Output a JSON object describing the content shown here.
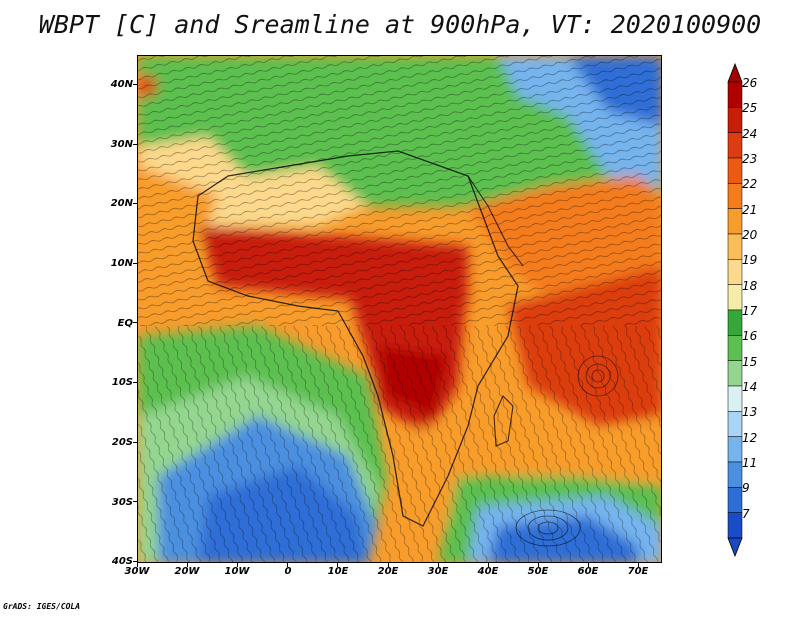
{
  "title": "WBPT [C] and Sreamline at 900hPa, VT: 2020100900",
  "footer": "GrADS: IGES/COLA",
  "axes": {
    "y_labels": [
      "40N",
      "30N",
      "20N",
      "10N",
      "EQ",
      "10S",
      "20S",
      "30S",
      "40S"
    ],
    "x_labels": [
      "30W",
      "20W",
      "10W",
      "0",
      "10E",
      "20E",
      "30E",
      "40E",
      "50E",
      "60E",
      "70E"
    ]
  },
  "colorbar": {
    "labels": [
      "26",
      "25",
      "24",
      "23",
      "22",
      "21",
      "20",
      "19",
      "18",
      "17",
      "16",
      "15",
      "14",
      "13",
      "12",
      "11",
      "9",
      "7"
    ],
    "colors": [
      "#b00000",
      "#c81e08",
      "#dc3c10",
      "#ec5a14",
      "#f47c1a",
      "#f89c2c",
      "#fbbd58",
      "#fcd98c",
      "#f4eca8",
      "#34a838",
      "#5cc050",
      "#94d690",
      "#daf1f4",
      "#a9d4f6",
      "#76b4ee",
      "#4b90e0",
      "#2d6ed6",
      "#1a4cc8"
    ],
    "top_arrow_color": "#a00000",
    "bottom_arrow_color": "#1a48c4"
  },
  "colors": {
    "ocean_cold": "#2d6ed6",
    "green": "#34a838",
    "yellow": "#fcd98c",
    "orange": "#f47c1a",
    "red": "#c81e08"
  }
}
